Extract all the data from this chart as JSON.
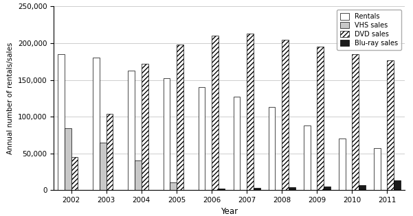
{
  "years": [
    2002,
    2003,
    2004,
    2005,
    2006,
    2007,
    2008,
    2009,
    2010,
    2011
  ],
  "rentals": [
    185000,
    180000,
    163000,
    152000,
    140000,
    127000,
    113000,
    88000,
    70000,
    57000
  ],
  "vhs_sales": [
    84000,
    65000,
    40000,
    10000,
    0,
    0,
    0,
    0,
    0,
    0
  ],
  "dvd_sales": [
    45000,
    104000,
    172000,
    198000,
    210000,
    213000,
    205000,
    195000,
    185000,
    177000
  ],
  "bluray_sales": [
    0,
    0,
    0,
    0,
    2000,
    3000,
    4000,
    5000,
    7000,
    13000
  ],
  "ylabel": "Annual number of rentals/sales",
  "xlabel": "Year",
  "ylim": [
    0,
    250000
  ],
  "yticks": [
    0,
    50000,
    100000,
    150000,
    200000,
    250000
  ],
  "ytick_labels": [
    "0",
    "50,000",
    "100,000",
    "150,000",
    "200,000",
    "250,000"
  ],
  "legend_labels": [
    "Rentals",
    "VHS sales",
    "DVD sales",
    "Blu-ray sales"
  ],
  "bar_width": 0.19,
  "rentals_color": "#ffffff",
  "vhs_color": "#c8c8c8",
  "dvd_hatch_color": "#404040",
  "bluray_color": "#1a1a1a",
  "edge_color": "#000000",
  "background_color": "#ffffff",
  "grid_color": "#bbbbbb"
}
